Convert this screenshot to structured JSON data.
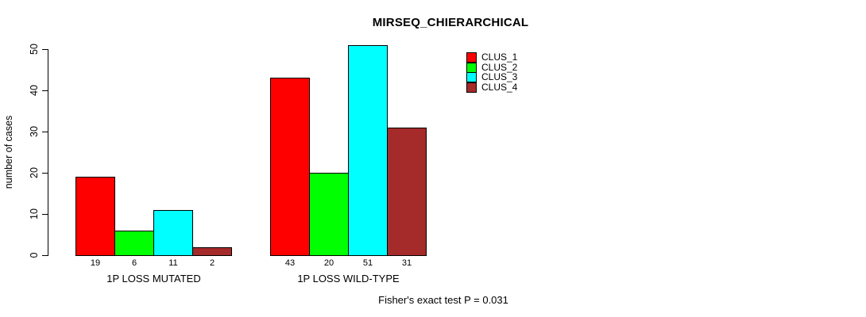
{
  "chart_data": {
    "type": "bar",
    "title": "MIRSEQ_CHIERARCHICAL",
    "ylabel": "number of cases",
    "xlabel": "",
    "categories": [
      "1P LOSS MUTATED",
      "1P LOSS WILD-TYPE"
    ],
    "series": [
      {
        "name": "CLUS_1",
        "color": "#ff0000",
        "values": [
          19,
          43
        ]
      },
      {
        "name": "CLUS_2",
        "color": "#00ff00",
        "values": [
          6,
          20
        ]
      },
      {
        "name": "CLUS_3",
        "color": "#00ffff",
        "values": [
          11,
          51
        ]
      },
      {
        "name": "CLUS_4",
        "color": "#a52a2a",
        "values": [
          2,
          31
        ]
      }
    ],
    "ylim": [
      0,
      50
    ],
    "yticks": [
      0,
      10,
      20,
      30,
      40,
      50
    ],
    "grid": false,
    "bar_value_labels_shown": true,
    "legend_position": "top-right",
    "annotation": "Fisher's exact test P = 0.031"
  },
  "colors": {
    "background": "#ffffff",
    "axis": "#000000",
    "text": "#000000"
  }
}
